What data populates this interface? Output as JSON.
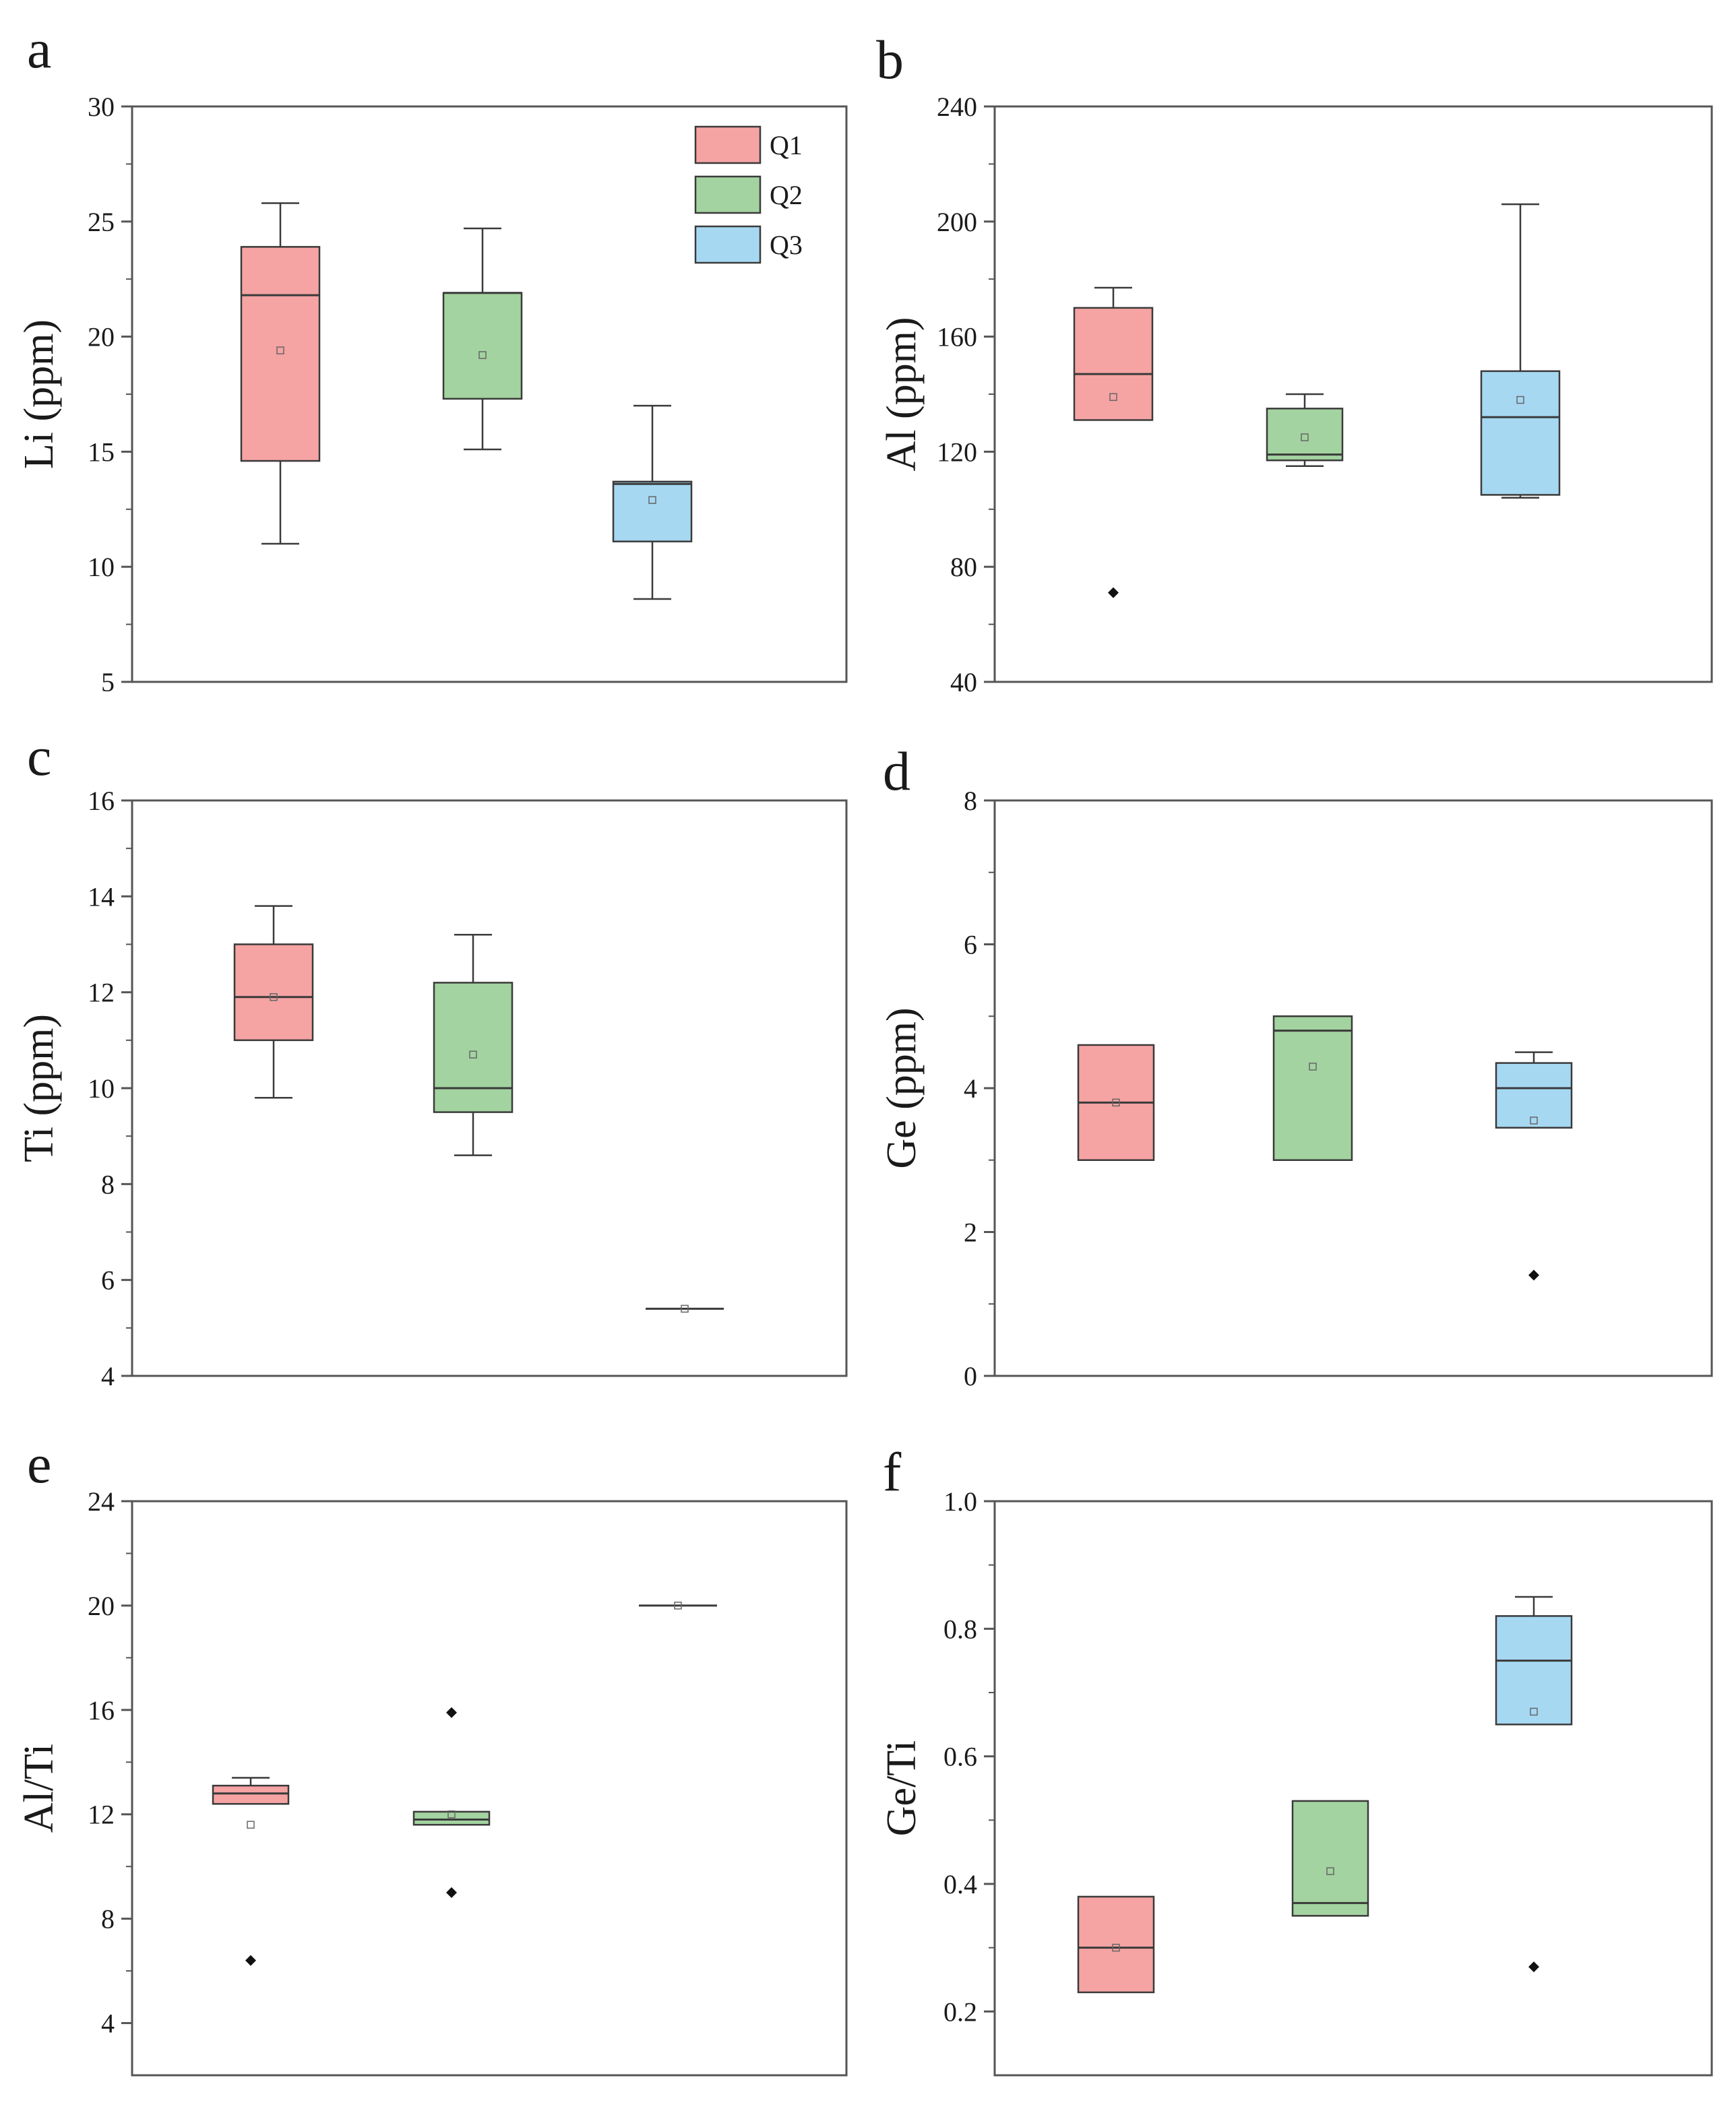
{
  "colors": {
    "Q1": "#f5a3a3",
    "Q2": "#a3d3a0",
    "Q3": "#a6d8f2",
    "stroke": "#3a3a3a"
  },
  "legend": {
    "items": [
      {
        "key": "Q1",
        "label": "Q1"
      },
      {
        "key": "Q2",
        "label": "Q2"
      },
      {
        "key": "Q3",
        "label": "Q3"
      }
    ]
  },
  "chart_data": [
    {
      "type": "box",
      "panel": "a",
      "ylabel": "Li (ppm)",
      "ylim": [
        5,
        30
      ],
      "yticks": [
        5,
        10,
        15,
        20,
        25,
        30
      ],
      "yticklabels": [
        "5",
        "10",
        "15",
        "20",
        "25",
        "30"
      ],
      "xlabel": "",
      "has_legend": true,
      "series": [
        {
          "name": "Q1",
          "whisker_low": 11.0,
          "q1": 14.6,
          "median": 21.8,
          "q3": 23.9,
          "whisker_high": 25.8,
          "mean": 19.4,
          "outliers": []
        },
        {
          "name": "Q2",
          "whisker_low": 15.1,
          "q1": 17.3,
          "median": 21.9,
          "q3": 21.9,
          "whisker_high": 24.7,
          "mean": 19.2,
          "outliers": []
        },
        {
          "name": "Q3",
          "whisker_low": 8.6,
          "q1": 11.1,
          "median": 13.6,
          "q3": 13.7,
          "whisker_high": 17.0,
          "mean": 12.9,
          "outliers": []
        }
      ]
    },
    {
      "type": "box",
      "panel": "b",
      "ylabel": "Al (ppm)",
      "ylim": [
        40,
        240
      ],
      "yticks": [
        40,
        80,
        120,
        160,
        200,
        240
      ],
      "yticklabels": [
        "40",
        "80",
        "120",
        "160",
        "200",
        "240"
      ],
      "xlabel": "",
      "has_legend": false,
      "series": [
        {
          "name": "Q1",
          "whisker_low": 131,
          "q1": 131,
          "median": 147,
          "q3": 170,
          "whisker_high": 177,
          "mean": 139,
          "outliers": [
            71
          ]
        },
        {
          "name": "Q2",
          "whisker_low": 115,
          "q1": 117,
          "median": 119,
          "q3": 135,
          "whisker_high": 140,
          "mean": 125,
          "outliers": []
        },
        {
          "name": "Q3",
          "whisker_low": 104,
          "q1": 105,
          "median": 132,
          "q3": 148,
          "whisker_high": 206,
          "mean": 138,
          "outliers": []
        }
      ]
    },
    {
      "type": "box",
      "panel": "c",
      "ylabel": "Ti (ppm)",
      "ylim": [
        4,
        16
      ],
      "yticks": [
        4,
        6,
        8,
        10,
        12,
        14,
        16
      ],
      "yticklabels": [
        "4",
        "6",
        "8",
        "10",
        "12",
        "14",
        "16"
      ],
      "xlabel": "",
      "has_legend": false,
      "series": [
        {
          "name": "Q1",
          "whisker_low": 9.8,
          "q1": 11.0,
          "median": 11.9,
          "q3": 13.0,
          "whisker_high": 13.8,
          "mean": 11.9,
          "outliers": []
        },
        {
          "name": "Q2",
          "whisker_low": 8.6,
          "q1": 9.5,
          "median": 10.0,
          "q3": 12.2,
          "whisker_high": 13.2,
          "mean": 10.7,
          "outliers": []
        },
        {
          "name": "Q3",
          "whisker_low": 5.4,
          "q1": 5.4,
          "median": 5.4,
          "q3": 5.4,
          "whisker_high": 5.4,
          "mean": 5.4,
          "outliers": []
        }
      ]
    },
    {
      "type": "box",
      "panel": "d",
      "ylabel": "Ge (ppm)",
      "ylim": [
        0,
        8
      ],
      "yticks": [
        0,
        2,
        4,
        6,
        8
      ],
      "yticklabels": [
        "0",
        "2",
        "4",
        "6",
        "8"
      ],
      "xlabel": "",
      "has_legend": false,
      "series": [
        {
          "name": "Q1",
          "whisker_low": 3.0,
          "q1": 3.0,
          "median": 3.8,
          "q3": 4.6,
          "whisker_high": 4.6,
          "mean": 3.8,
          "outliers": []
        },
        {
          "name": "Q2",
          "whisker_low": 3.0,
          "q1": 3.0,
          "median": 4.8,
          "q3": 5.0,
          "whisker_high": 5.0,
          "mean": 4.3,
          "outliers": []
        },
        {
          "name": "Q3",
          "whisker_low": 3.45,
          "q1": 3.45,
          "median": 4.0,
          "q3": 4.35,
          "whisker_high": 4.5,
          "mean": 3.55,
          "outliers": [
            1.4
          ]
        }
      ]
    },
    {
      "type": "box",
      "panel": "e",
      "ylabel": "Al/Ti",
      "ylim": [
        2,
        24
      ],
      "yticks": [
        4,
        8,
        12,
        16,
        20,
        24
      ],
      "yticklabels": [
        "4",
        "8",
        "12",
        "16",
        "20",
        "24"
      ],
      "xlabel": "",
      "has_legend": false,
      "series": [
        {
          "name": "Q1",
          "whisker_low": 12.4,
          "q1": 12.4,
          "median": 12.8,
          "q3": 13.1,
          "whisker_high": 13.4,
          "mean": 11.6,
          "outliers": [
            6.4
          ]
        },
        {
          "name": "Q2",
          "whisker_low": 11.6,
          "q1": 11.6,
          "median": 11.8,
          "q3": 12.1,
          "whisker_high": 12.1,
          "mean": 12.0,
          "outliers": [
            15.9,
            9.0
          ]
        },
        {
          "name": "Q3",
          "whisker_low": 20.0,
          "q1": 20.0,
          "median": 20.0,
          "q3": 20.0,
          "whisker_high": 20.0,
          "mean": 20.0,
          "outliers": []
        }
      ]
    },
    {
      "type": "box",
      "panel": "f",
      "ylabel": "Ge/Ti",
      "ylim": [
        0.1,
        1.0
      ],
      "yticks": [
        0.2,
        0.4,
        0.6,
        0.8,
        1.0
      ],
      "yticklabels": [
        "0.2",
        "0.4",
        "0.6",
        "0.8",
        "1.0"
      ],
      "xlabel": "",
      "has_legend": false,
      "series": [
        {
          "name": "Q1",
          "whisker_low": 0.23,
          "q1": 0.23,
          "median": 0.3,
          "q3": 0.38,
          "whisker_high": 0.38,
          "mean": 0.3,
          "outliers": []
        },
        {
          "name": "Q2",
          "whisker_low": 0.35,
          "q1": 0.35,
          "median": 0.37,
          "q3": 0.53,
          "whisker_high": 0.53,
          "mean": 0.42,
          "outliers": []
        },
        {
          "name": "Q3",
          "whisker_low": 0.65,
          "q1": 0.65,
          "median": 0.75,
          "q3": 0.82,
          "whisker_high": 0.85,
          "mean": 0.67,
          "outliers": [
            0.27
          ]
        }
      ]
    }
  ]
}
